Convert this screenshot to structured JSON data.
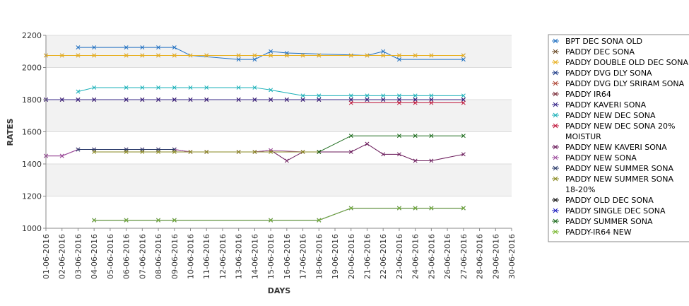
{
  "chart_data": {
    "type": "line",
    "title": "",
    "xlabel": "DAYS",
    "ylabel": "RATES",
    "ylim": [
      1000,
      2200
    ],
    "yticks": [
      1000,
      1200,
      1400,
      1600,
      1800,
      2000,
      2200
    ],
    "grid": true,
    "legend_position": "right",
    "categories": [
      "01-06-2016",
      "02-06-2016",
      "03-06-2016",
      "04-06-2016",
      "05-06-2016",
      "06-06-2016",
      "07-06-2016",
      "08-06-2016",
      "09-06-2016",
      "10-06-2016",
      "11-06-2016",
      "12-06-2016",
      "13-06-2016",
      "14-06-2016",
      "15-06-2016",
      "16-06-2016",
      "17-06-2016",
      "18-06-2016",
      "19-06-2016",
      "20-06-2016",
      "21-06-2016",
      "22-06-2016",
      "23-06-2016",
      "24-06-2016",
      "25-06-2016",
      "26-06-2016",
      "27-06-2016",
      "28-06-2016",
      "29-06-2016",
      "30-06-2016"
    ],
    "series": [
      {
        "name": "BPT DEC SONA OLD",
        "color": "#1f6fc1",
        "values": [
          null,
          null,
          2125,
          2125,
          null,
          2125,
          2125,
          2125,
          2125,
          2075,
          null,
          null,
          2050,
          2050,
          2100,
          2090,
          null,
          null,
          null,
          null,
          2075,
          2100,
          2050,
          null,
          null,
          null,
          2050,
          null,
          null,
          null
        ]
      },
      {
        "name": "PADDY DEC SONA",
        "color": "#6b4c2a",
        "values": [
          2075,
          2075,
          2075,
          2075,
          null,
          2075,
          2075,
          2075,
          2075,
          null,
          2075,
          null,
          2075,
          2075,
          2075,
          2075,
          2075,
          2075,
          null,
          2075,
          2075,
          2075,
          2075,
          2075,
          2075,
          null,
          2075,
          null,
          null,
          null
        ]
      },
      {
        "name": "PADDY DOUBLE OLD DEC SONA",
        "color": "#e8b020",
        "values": [
          2075,
          2075,
          2075,
          2075,
          null,
          2075,
          2075,
          2075,
          2075,
          2075,
          2075,
          null,
          2075,
          2075,
          2075,
          2075,
          2075,
          2075,
          null,
          2075,
          2075,
          2075,
          2075,
          2075,
          2075,
          null,
          2075,
          null,
          null,
          null
        ]
      },
      {
        "name": "PADDY DVG DLY SONA",
        "color": "#1f3c88",
        "values": [
          1800,
          1800,
          1800,
          1800,
          null,
          1800,
          1800,
          1800,
          1800,
          1800,
          1800,
          null,
          1800,
          1800,
          1800,
          1800,
          1800,
          1800,
          null,
          1800,
          1800,
          1800,
          1800,
          1800,
          1800,
          null,
          1800,
          null,
          null,
          null
        ]
      },
      {
        "name": "PADDY DVG DLY SRIRAM SONA",
        "color": "#b04a3a",
        "values": [
          1800,
          1800,
          1800,
          1800,
          null,
          1800,
          1800,
          1800,
          1800,
          1800,
          1800,
          null,
          1800,
          1800,
          1800,
          1800,
          1800,
          1800,
          null,
          1800,
          1800,
          1800,
          1800,
          1800,
          1800,
          null,
          1800,
          null,
          null,
          null
        ]
      },
      {
        "name": "PADDY IR64",
        "color": "#7b2e3a",
        "values": [
          1800,
          1800,
          1800,
          1800,
          null,
          1800,
          1800,
          1800,
          1800,
          1800,
          1800,
          null,
          1800,
          1800,
          1800,
          1800,
          1800,
          1800,
          null,
          1800,
          1800,
          1800,
          1800,
          1800,
          1800,
          null,
          1800,
          null,
          null,
          null
        ]
      },
      {
        "name": "PADDY KAVERI SONA",
        "color": "#3a2a8a",
        "values": [
          1800,
          1800,
          1800,
          1800,
          null,
          1800,
          1800,
          1800,
          1800,
          1800,
          1800,
          null,
          1800,
          1800,
          1800,
          1800,
          1800,
          1800,
          null,
          1800,
          1800,
          1800,
          1800,
          1800,
          1800,
          null,
          1800,
          null,
          null,
          null
        ]
      },
      {
        "name": "PADDY NEW DEC SONA",
        "color": "#1ab0b8",
        "values": [
          null,
          null,
          1850,
          1875,
          null,
          1875,
          1875,
          1875,
          1875,
          1875,
          1875,
          null,
          1875,
          1875,
          1860,
          null,
          1825,
          1825,
          null,
          1825,
          1825,
          1825,
          1825,
          1825,
          1825,
          null,
          1825,
          null,
          null,
          null
        ]
      },
      {
        "name": "PADDY NEW DEC SONA 20% MOISTUR",
        "color": "#c0183c",
        "values": [
          null,
          null,
          null,
          null,
          null,
          null,
          null,
          null,
          null,
          null,
          null,
          null,
          null,
          null,
          null,
          null,
          null,
          null,
          null,
          1780,
          null,
          null,
          1780,
          1780,
          1780,
          null,
          1780,
          null,
          null,
          null
        ]
      },
      {
        "name": "PADDY NEW KAVERI SONA",
        "color": "#6a1a5a",
        "values": [
          1450,
          1450,
          1490,
          1490,
          null,
          1490,
          1490,
          1490,
          1490,
          1475,
          1475,
          null,
          1475,
          1475,
          1485,
          1420,
          1475,
          1475,
          null,
          1475,
          1525,
          1460,
          1460,
          1420,
          1420,
          null,
          1460,
          null,
          null,
          null
        ]
      },
      {
        "name": "PADDY NEW SONA",
        "color": "#a050a0",
        "values": [
          1450,
          1450,
          1490,
          1490,
          null,
          1490,
          1490,
          1490,
          1490,
          1475,
          1475,
          null,
          1475,
          1475,
          1485,
          null,
          1475,
          1475,
          null,
          null,
          null,
          null,
          null,
          null,
          null,
          null,
          null,
          null,
          null,
          null
        ]
      },
      {
        "name": "PADDY NEW SUMMER SONA",
        "color": "#2a3a6a",
        "values": [
          null,
          null,
          1490,
          1490,
          null,
          1490,
          1490,
          1490,
          1490,
          null,
          null,
          null,
          null,
          null,
          null,
          null,
          null,
          null,
          null,
          null,
          null,
          null,
          null,
          null,
          null,
          null,
          null,
          null,
          null,
          null
        ]
      },
      {
        "name": "PADDY NEW SUMMER SONA 18-20%",
        "color": "#8a8a20",
        "values": [
          null,
          null,
          null,
          1475,
          null,
          1475,
          1475,
          1475,
          1475,
          1475,
          1475,
          null,
          1475,
          1475,
          1475,
          null,
          1475,
          1475,
          null,
          null,
          null,
          null,
          null,
          null,
          null,
          null,
          null,
          null,
          null,
          null
        ]
      },
      {
        "name": "PADDY OLD DEC SONA",
        "color": "#111111",
        "values": [
          null,
          null,
          null,
          1050,
          null,
          1050,
          null,
          1050,
          1050,
          null,
          null,
          null,
          null,
          null,
          1050,
          null,
          null,
          1050,
          null,
          1125,
          null,
          null,
          1125,
          1125,
          1125,
          null,
          1125,
          null,
          null,
          null
        ]
      },
      {
        "name": "PADDY SINGLE DEC SONA",
        "color": "#2020c0",
        "values": [
          null,
          null,
          null,
          1050,
          null,
          1050,
          null,
          1050,
          1050,
          null,
          null,
          null,
          null,
          null,
          1050,
          null,
          null,
          1050,
          null,
          1125,
          null,
          null,
          1125,
          1125,
          1125,
          null,
          1125,
          null,
          null,
          null
        ]
      },
      {
        "name": "PADDY SUMMER SONA",
        "color": "#1a6a1a",
        "values": [
          null,
          null,
          null,
          null,
          null,
          null,
          null,
          null,
          null,
          null,
          null,
          null,
          null,
          null,
          null,
          null,
          null,
          1475,
          null,
          1575,
          null,
          null,
          1575,
          1575,
          1575,
          null,
          1575,
          null,
          null,
          null
        ]
      },
      {
        "name": "PADDY-IR64 NEW",
        "color": "#7ab830",
        "values": [
          null,
          null,
          null,
          1050,
          null,
          1050,
          null,
          1050,
          1050,
          null,
          null,
          null,
          null,
          null,
          1050,
          null,
          null,
          1050,
          null,
          1125,
          null,
          null,
          1125,
          1125,
          1125,
          null,
          1125,
          null,
          null,
          null
        ]
      }
    ]
  }
}
